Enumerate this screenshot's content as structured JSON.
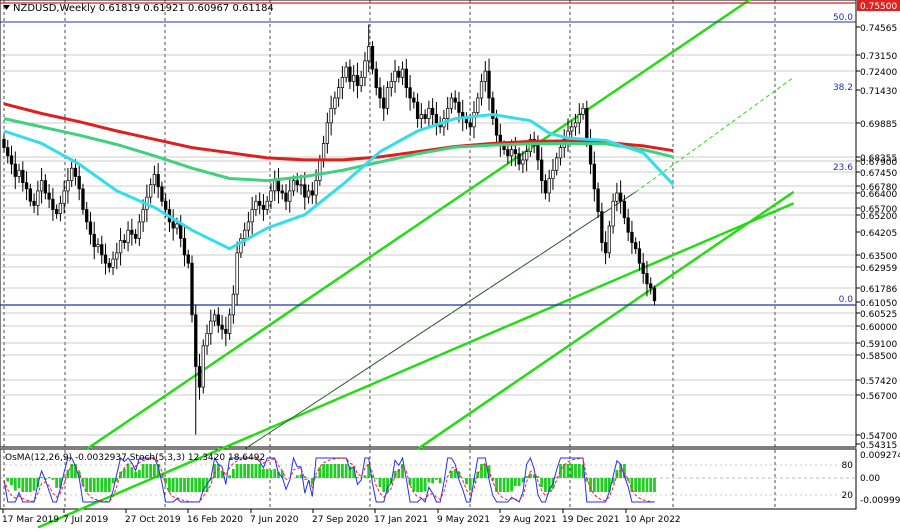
{
  "symbol_header": {
    "text": "NZDUSD,Weekly  0.61819 0.61921 0.60967 0.61184",
    "triangle_icon": "triangle-down-icon"
  },
  "indicator_header": {
    "text": "OsMA(12,26,9) -0.0032937   Stoch(5,3,3) 12.3420 18.6492"
  },
  "colors": {
    "bull_candle": "#ffffff",
    "bear_candle": "#000000",
    "ma_red": "#dd1f1f",
    "ma_green": "#40d080",
    "ma_cyan": "#33ddee",
    "channel_green": "#22dd11",
    "level_line": "#2233aa",
    "top_line": "#dd2222",
    "osma_bar": "#22cc22",
    "stoch_main": "#2233ee",
    "stoch_signal": "#ee2233"
  },
  "chart_data": [
    {
      "type": "candlestick",
      "title": "NZDUSD,Weekly",
      "ohlc_last": {
        "open": 0.61819,
        "high": 0.61921,
        "low": 0.60967,
        "close": 0.61184
      },
      "price_axis_labels": [
        "0.75500",
        "0.74565",
        "0.73150",
        "0.72400",
        "0.71430",
        "0.69885",
        "0.68355",
        "0.67900",
        "0.67450",
        "0.66780",
        "0.66400",
        "0.65700",
        "0.65200",
        "0.64205",
        "0.63500",
        "0.62959",
        "0.61786",
        "0.61050",
        "0.60525",
        "0.60000",
        "0.59100",
        "0.58500",
        "0.57420",
        "0.56700",
        "0.54700",
        "0.54315"
      ],
      "highlighted_labels": [
        "0.75500"
      ],
      "time_axis_labels": [
        "17 Mar 2019",
        "7 Jul 2019",
        "27 Oct 2019",
        "16 Feb 2020",
        "7 Jun 2020",
        "27 Sep 2020",
        "17 Jan 2021",
        "9 May 2021",
        "29 Aug 2021",
        "19 Dec 2021",
        "10 Apr 2022"
      ],
      "fib_levels": [
        {
          "label": "50.0",
          "price": 0.74565
        },
        {
          "label": "38.2",
          "price": 0.7143
        },
        {
          "label": "23.6",
          "price": 0.6745
        },
        {
          "label": "0.0",
          "price": 0.6105
        }
      ],
      "top_level_price": 0.755,
      "moving_averages": [
        {
          "color_key": "ma_red",
          "points": [
            [
              0,
              0.7072
            ],
            [
              10,
              0.7025
            ],
            [
              20,
              0.6985
            ],
            [
              30,
              0.694
            ],
            [
              40,
              0.69
            ],
            [
              50,
              0.686
            ],
            [
              60,
              0.6835
            ],
            [
              70,
              0.681
            ],
            [
              80,
              0.68
            ],
            [
              90,
              0.68
            ],
            [
              100,
              0.6815
            ],
            [
              110,
              0.684
            ],
            [
              120,
              0.6865
            ],
            [
              130,
              0.688
            ],
            [
              140,
              0.689
            ],
            [
              150,
              0.6892
            ],
            [
              160,
              0.6885
            ],
            [
              170,
              0.6868
            ],
            [
              178,
              0.6845
            ]
          ]
        },
        {
          "color_key": "ma_green",
          "points": [
            [
              0,
              0.7
            ],
            [
              10,
              0.696
            ],
            [
              20,
              0.692
            ],
            [
              30,
              0.6875
            ],
            [
              40,
              0.682
            ],
            [
              50,
              0.676
            ],
            [
              60,
              0.671
            ],
            [
              70,
              0.67
            ],
            [
              80,
              0.672
            ],
            [
              90,
              0.675
            ],
            [
              100,
              0.679
            ],
            [
              110,
              0.683
            ],
            [
              120,
              0.6862
            ],
            [
              130,
              0.6872
            ],
            [
              140,
              0.6878
            ],
            [
              150,
              0.688
            ],
            [
              160,
              0.6878
            ],
            [
              170,
              0.685
            ],
            [
              178,
              0.6815
            ]
          ]
        },
        {
          "color_key": "ma_cyan",
          "points": [
            [
              0,
              0.694
            ],
            [
              10,
              0.688
            ],
            [
              20,
              0.678
            ],
            [
              30,
              0.665
            ],
            [
              40,
              0.657
            ],
            [
              50,
              0.646
            ],
            [
              60,
              0.637
            ],
            [
              70,
              0.647
            ],
            [
              80,
              0.6535
            ],
            [
              90,
              0.668
            ],
            [
              100,
              0.684
            ],
            [
              110,
              0.694
            ],
            [
              120,
              0.7
            ],
            [
              130,
              0.702
            ],
            [
              140,
              0.699
            ],
            [
              145,
              0.693
            ],
            [
              150,
              0.6905
            ],
            [
              160,
              0.6895
            ],
            [
              170,
              0.6835
            ],
            [
              178,
              0.668
            ]
          ]
        }
      ],
      "channel_lines": [
        {
          "style": "solid",
          "from": [
            22,
            0.54
          ],
          "to": [
            210,
            0.772
          ]
        },
        {
          "style": "solid",
          "from": [
            110,
            0.54
          ],
          "to": [
            210,
            0.6645
          ]
        },
        {
          "style": "solid",
          "from": [
            9,
            0.502
          ],
          "to": [
            210,
            0.659
          ]
        },
        {
          "style": "thin",
          "from": [
            64,
            0.54
          ],
          "to": [
            168,
            0.6645
          ]
        },
        {
          "style": "dashed",
          "from": [
            168,
            0.6645
          ],
          "to": [
            210,
            0.72
          ]
        }
      ],
      "closes": [
        0.686,
        0.682,
        0.678,
        0.672,
        0.675,
        0.669,
        0.666,
        0.66,
        0.658,
        0.665,
        0.67,
        0.664,
        0.661,
        0.656,
        0.654,
        0.659,
        0.665,
        0.67,
        0.676,
        0.672,
        0.666,
        0.656,
        0.65,
        0.644,
        0.638,
        0.639,
        0.634,
        0.63,
        0.628,
        0.632,
        0.635,
        0.641,
        0.64,
        0.646,
        0.644,
        0.642,
        0.65,
        0.656,
        0.662,
        0.668,
        0.673,
        0.667,
        0.66,
        0.656,
        0.65,
        0.647,
        0.649,
        0.642,
        0.634,
        0.63,
        0.605,
        0.58,
        0.57,
        0.59,
        0.596,
        0.602,
        0.605,
        0.6,
        0.598,
        0.596,
        0.605,
        0.615,
        0.635,
        0.642,
        0.646,
        0.65,
        0.656,
        0.66,
        0.658,
        0.656,
        0.66,
        0.665,
        0.67,
        0.665,
        0.664,
        0.66,
        0.665,
        0.67,
        0.668,
        0.668,
        0.662,
        0.665,
        0.663,
        0.67,
        0.68,
        0.688,
        0.698,
        0.705,
        0.71,
        0.715,
        0.72,
        0.725,
        0.718,
        0.721,
        0.716,
        0.72,
        0.728,
        0.735,
        0.724,
        0.715,
        0.71,
        0.705,
        0.715,
        0.718,
        0.723,
        0.72,
        0.724,
        0.715,
        0.71,
        0.708,
        0.7,
        0.702,
        0.7,
        0.705,
        0.702,
        0.698,
        0.696,
        0.7,
        0.705,
        0.71,
        0.708,
        0.703,
        0.7,
        0.698,
        0.696,
        0.703,
        0.71,
        0.718,
        0.723,
        0.71,
        0.7,
        0.692,
        0.687,
        0.685,
        0.682,
        0.685,
        0.683,
        0.678,
        0.68,
        0.684,
        0.69,
        0.687,
        0.68,
        0.67,
        0.664,
        0.671,
        0.675,
        0.681,
        0.686,
        0.69,
        0.694,
        0.696,
        0.698,
        0.702,
        0.705,
        0.69,
        0.678,
        0.666,
        0.655,
        0.64,
        0.635,
        0.648,
        0.66,
        0.664,
        0.66,
        0.652,
        0.645,
        0.64,
        0.637,
        0.63,
        0.625,
        0.62,
        0.618,
        0.6118
      ]
    },
    {
      "type": "bar",
      "title": "OsMA(12,26,9)",
      "value_last": -0.0032937,
      "axis_labels": [
        "0.0092745",
        "0.00",
        "-0.0099974"
      ],
      "stoch_levels": [
        {
          "label": "80",
          "value": 80
        },
        {
          "label": "20",
          "value": 20
        }
      ],
      "stoch_last": {
        "main": 12.342,
        "signal": 18.6492
      }
    }
  ]
}
